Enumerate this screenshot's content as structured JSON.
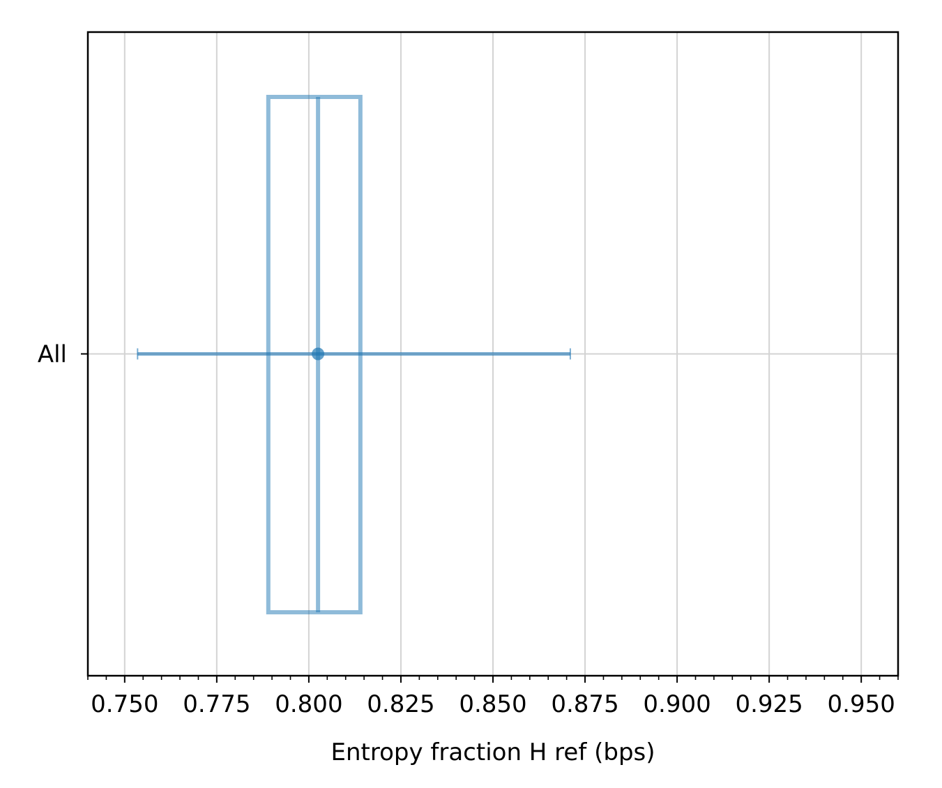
{
  "chart_data": {
    "type": "box",
    "orientation": "horizontal",
    "title": "",
    "xlabel": "Entropy fraction H ref (bps)",
    "ylabel": "",
    "xlim": [
      0.74,
      0.96
    ],
    "x_ticks": [
      0.75,
      0.775,
      0.8,
      0.825,
      0.85,
      0.875,
      0.9,
      0.925,
      0.95
    ],
    "x_tick_labels": [
      "0.750",
      "0.775",
      "0.800",
      "0.825",
      "0.850",
      "0.875",
      "0.900",
      "0.925",
      "0.950"
    ],
    "x_minor_step": 0.005,
    "categories": [
      "All"
    ],
    "grid": true,
    "color": "#1f77b4",
    "boxes": [
      {
        "category": "All",
        "q1": 0.789,
        "median": 0.8025,
        "q3": 0.814,
        "mean": 0.8025,
        "error_low": 0.7535,
        "error_high": 0.871
      }
    ]
  }
}
